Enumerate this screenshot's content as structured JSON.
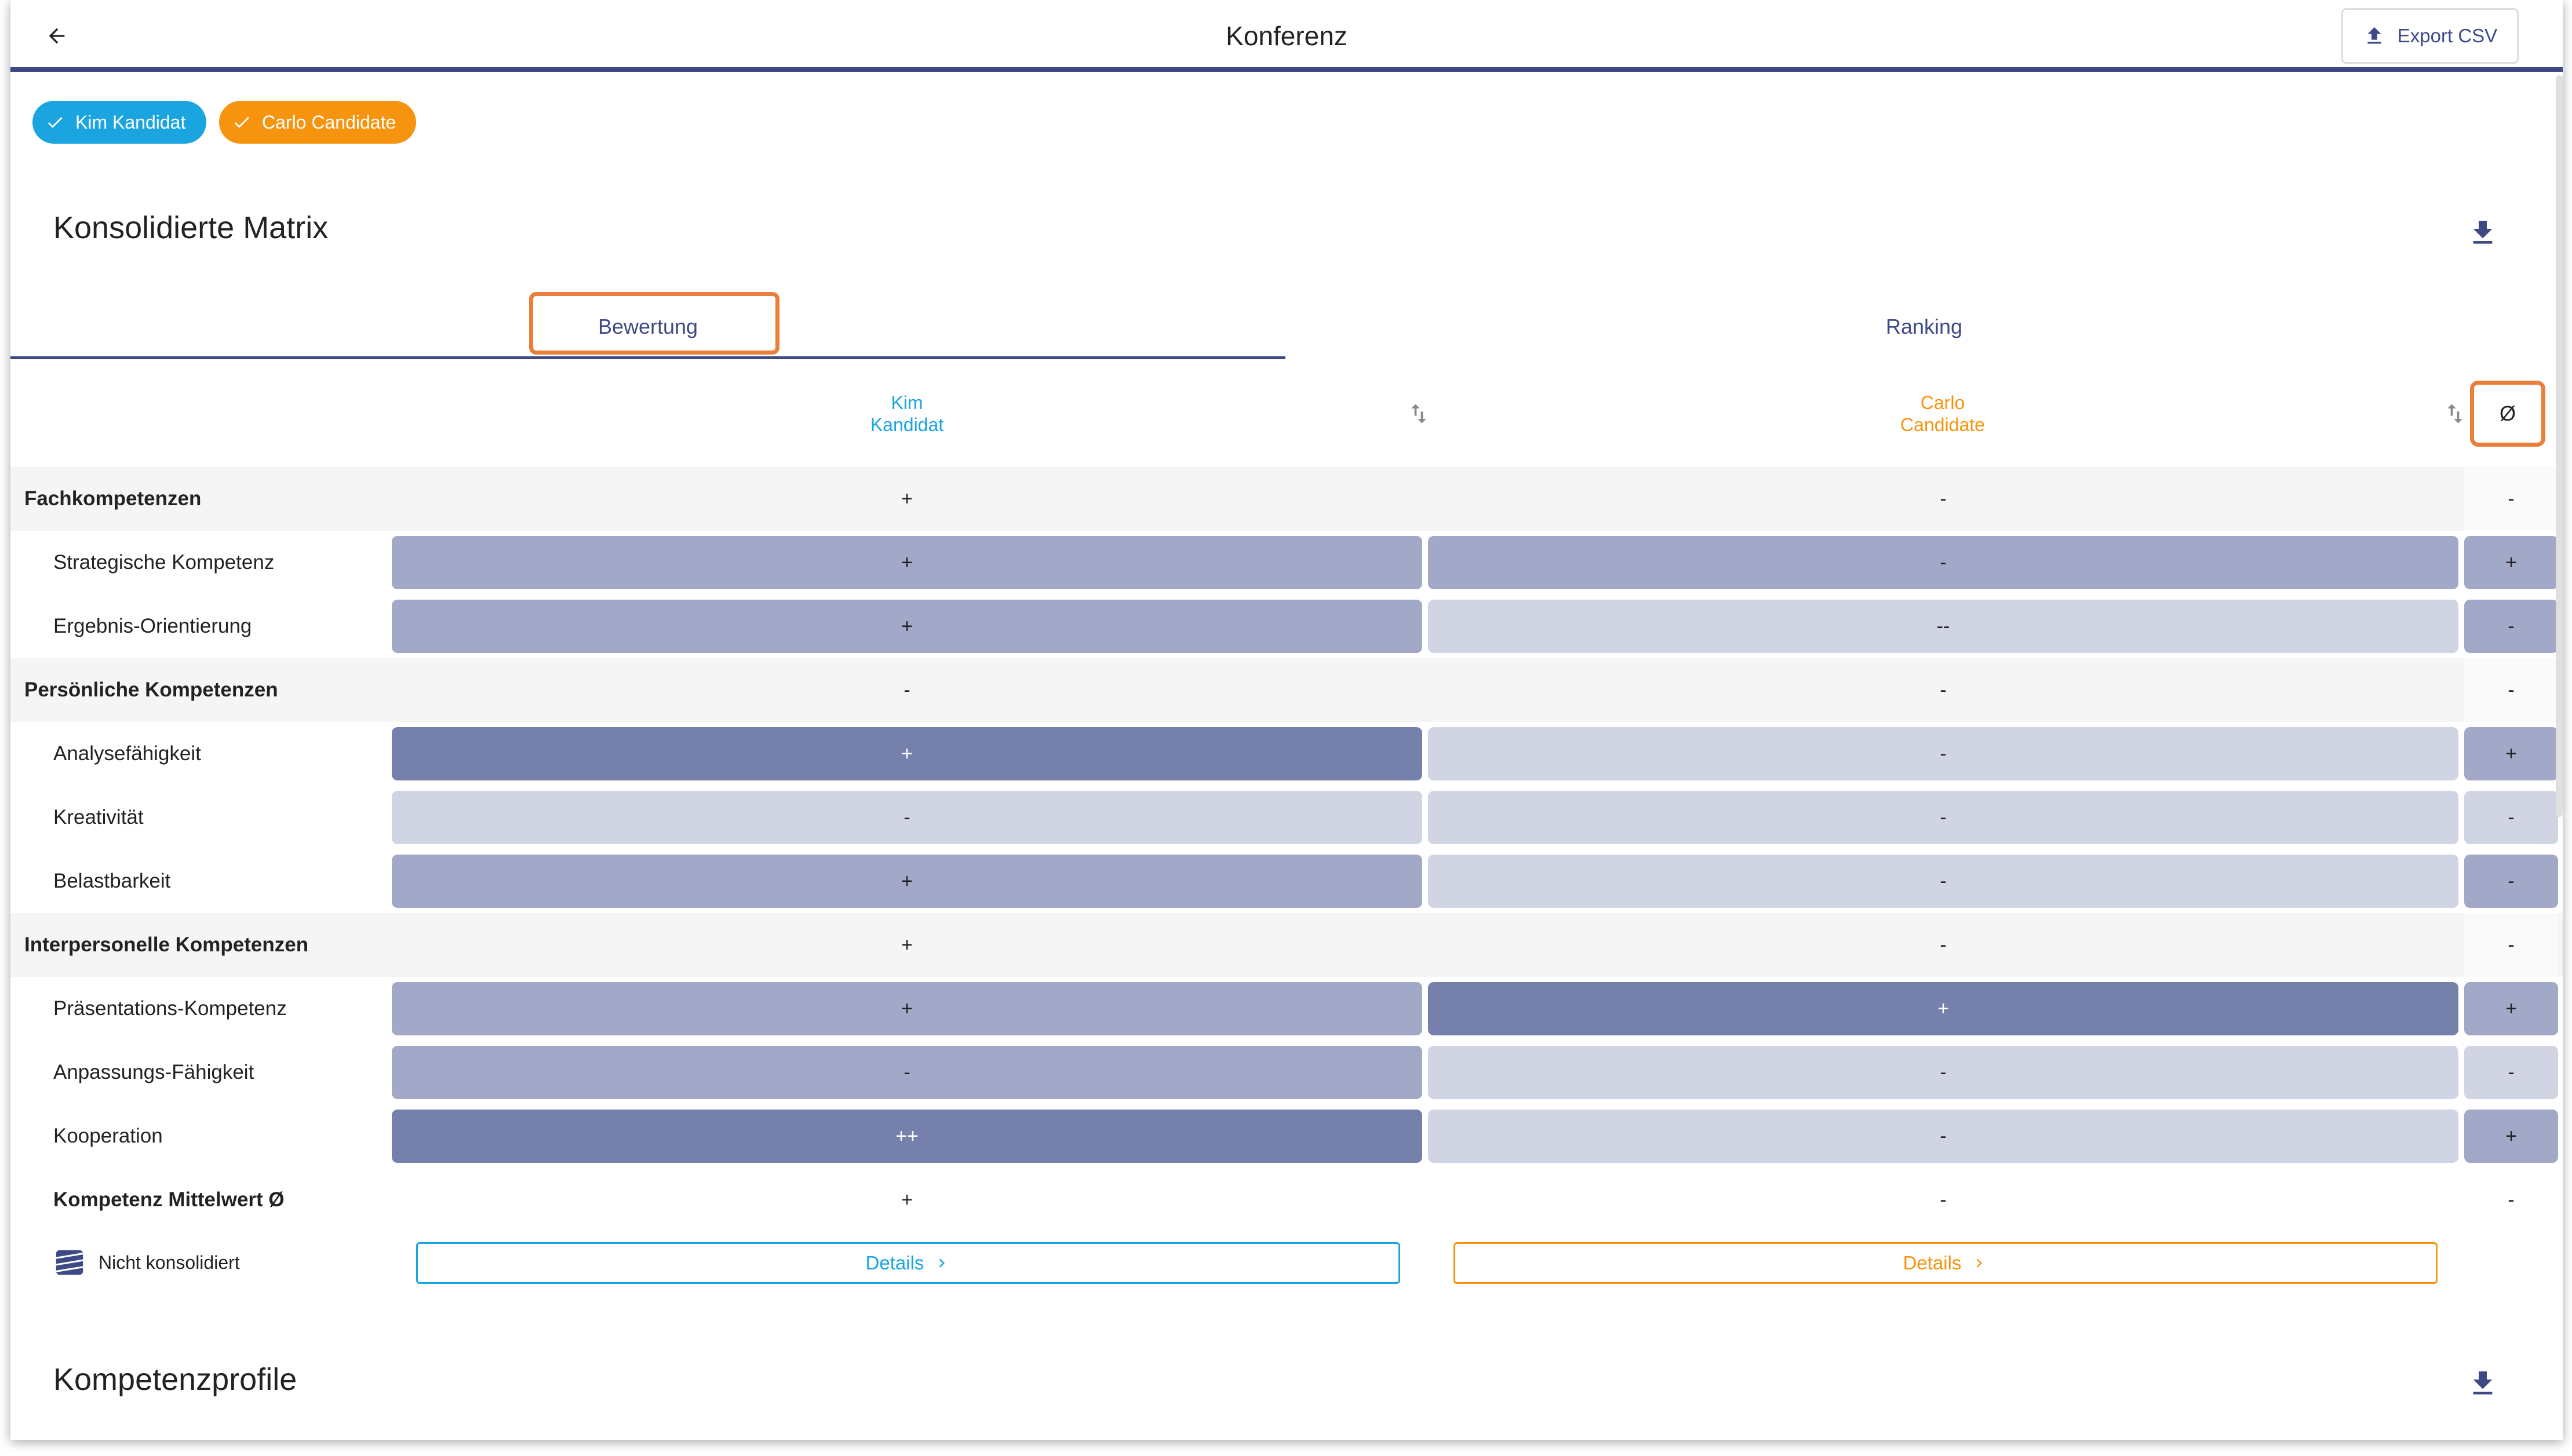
{
  "header": {
    "title": "Konferenz",
    "export_label": "Export CSV",
    "back_icon": "arrow-left-icon"
  },
  "chips": [
    {
      "label": "Kim Kandidat",
      "color": "#1aa4e0"
    },
    {
      "label": "Carlo Candidate",
      "color": "#f7940f"
    }
  ],
  "matrix": {
    "title": "Konsolidierte Matrix",
    "tabs": [
      {
        "label": "Bewertung",
        "selected": true
      },
      {
        "label": "Ranking",
        "selected": false
      }
    ],
    "columns": [
      {
        "line1": "Kim",
        "line2": "Kandidat",
        "color": "#1aa4e0"
      },
      {
        "line1": "Carlo",
        "line2": "Candidate",
        "color": "#f7940f"
      }
    ],
    "avg_header": "Ø",
    "rows": [
      {
        "type": "group",
        "label": "Fachkompetenzen",
        "values": [
          "+",
          "-",
          "-"
        ],
        "levels": [
          "",
          "",
          ""
        ]
      },
      {
        "type": "sub",
        "label": "Strategische Kompetenz",
        "values": [
          "+",
          "-",
          "+"
        ],
        "levels": [
          "mid",
          "mid",
          "mid"
        ]
      },
      {
        "type": "sub",
        "label": "Ergebnis-Orientierung",
        "values": [
          "+",
          "--",
          "-"
        ],
        "levels": [
          "mid",
          "light",
          "mid"
        ]
      },
      {
        "type": "group",
        "label": "Persönliche Kompetenzen",
        "values": [
          "-",
          "-",
          "-"
        ],
        "levels": [
          "",
          "",
          ""
        ]
      },
      {
        "type": "sub",
        "label": "Analysefähigkeit",
        "values": [
          "+",
          "-",
          "+"
        ],
        "levels": [
          "dark",
          "light",
          "mid"
        ]
      },
      {
        "type": "sub",
        "label": "Kreativität",
        "values": [
          "-",
          "-",
          "-"
        ],
        "levels": [
          "light",
          "light",
          "light"
        ]
      },
      {
        "type": "sub",
        "label": "Belastbarkeit",
        "values": [
          "+",
          "-",
          "-"
        ],
        "levels": [
          "mid",
          "light",
          "mid"
        ]
      },
      {
        "type": "group",
        "label": "Interpersonelle Kompetenzen",
        "values": [
          "+",
          "-",
          "-"
        ],
        "levels": [
          "",
          "",
          ""
        ]
      },
      {
        "type": "sub",
        "label": "Präsentations-Kompetenz",
        "values": [
          "+",
          "+",
          "+"
        ],
        "levels": [
          "mid",
          "dark",
          "mid"
        ]
      },
      {
        "type": "sub",
        "label": "Anpassungs-Fähigkeit",
        "values": [
          "-",
          "-",
          "-"
        ],
        "levels": [
          "mid",
          "light",
          "light"
        ]
      },
      {
        "type": "sub",
        "label": "Kooperation",
        "values": [
          "++",
          "-",
          "+"
        ],
        "levels": [
          "dark",
          "light",
          "mid"
        ]
      },
      {
        "type": "avg",
        "label": "Kompetenz Mittelwert Ø",
        "values": [
          "+",
          "-",
          "-"
        ],
        "levels": [
          "",
          "",
          ""
        ]
      }
    ],
    "not_consolidated_label": "Nicht konsolidiert",
    "details_label": "Details"
  },
  "profiles": {
    "title": "Kompetenzprofile"
  },
  "colors": {
    "primary": "#3e4a86",
    "highlight": "#ea7e3b",
    "level_dark": "#7580ab",
    "level_mid": "#a2a8c7",
    "level_light": "#d1d4e3"
  }
}
